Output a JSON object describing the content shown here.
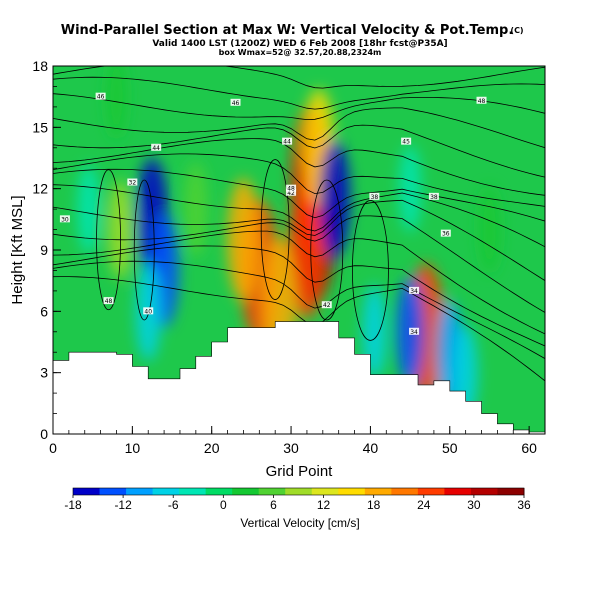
{
  "title": {
    "main": "Wind-Parallel Section at Max W: Vertical Velocity & Pot.Temp.",
    "main_suffix": "(C)",
    "line2": "Valid 1400 LST (1200Z) WED 6 Feb 2008 [18hr fcst@P35A]",
    "line3": "box Wmax=52@ 32.57,20.88,2324m"
  },
  "chart_data": {
    "type": "heatmap",
    "xlabel": "Grid Point",
    "ylabel": "Height [Kft MSL]",
    "xlim": [
      0,
      62
    ],
    "ylim": [
      0,
      18
    ],
    "xticks": [
      "0",
      "10",
      "20",
      "30",
      "40",
      "50",
      "60"
    ],
    "yticks": [
      "0",
      "3",
      "6",
      "9",
      "12",
      "15",
      "18"
    ],
    "colorbar": {
      "label": "Vertical Velocity [cm/s]",
      "ticks": [
        "-18",
        "-12",
        "-6",
        "0",
        "6",
        "12",
        "18",
        "24",
        "30",
        "36"
      ],
      "range": [
        -18,
        36
      ],
      "colors": [
        "#0000c8",
        "#0050ff",
        "#00a0ff",
        "#00d2e6",
        "#00e6b4",
        "#00dc64",
        "#14c832",
        "#50d232",
        "#a0dc28",
        "#dce61e",
        "#ffdc00",
        "#ffaa00",
        "#ff7800",
        "#ff3c00",
        "#e60000",
        "#b40000",
        "#8c0000"
      ]
    },
    "terrain": {
      "x": [
        0,
        2,
        4,
        6,
        8,
        10,
        12,
        14,
        16,
        18,
        20,
        22,
        24,
        26,
        28,
        30,
        32,
        34,
        36,
        38,
        40,
        42,
        44,
        46,
        48,
        50,
        52,
        54,
        56,
        58,
        60,
        62
      ],
      "height_kft": [
        3.6,
        4.0,
        4.0,
        4.0,
        3.9,
        3.3,
        2.7,
        2.7,
        3.2,
        3.8,
        4.5,
        5.2,
        5.2,
        5.2,
        5.5,
        5.5,
        5.5,
        5.5,
        4.7,
        3.9,
        2.9,
        2.9,
        2.9,
        2.4,
        2.6,
        2.1,
        1.6,
        1.0,
        0.5,
        0.2,
        0.1,
        0.1
      ]
    },
    "velocity_cells": [
      {
        "x": 33.0,
        "y": 10.5,
        "w_cms": 36
      },
      {
        "x": 32.5,
        "y": 12.5,
        "w_cms": 28
      },
      {
        "x": 32.0,
        "y": 9.0,
        "w_cms": 24
      },
      {
        "x": 33.5,
        "y": 14.0,
        "w_cms": 16
      },
      {
        "x": 26.0,
        "y": 8.0,
        "w_cms": 26
      },
      {
        "x": 24.0,
        "y": 9.5,
        "w_cms": 18
      },
      {
        "x": 28.5,
        "y": 6.5,
        "w_cms": 20
      },
      {
        "x": 12.5,
        "y": 10.5,
        "w_cms": -18
      },
      {
        "x": 14.0,
        "y": 8.0,
        "w_cms": -14
      },
      {
        "x": 12.0,
        "y": 6.0,
        "w_cms": -8
      },
      {
        "x": 35.5,
        "y": 11.5,
        "w_cms": -16
      },
      {
        "x": 8.5,
        "y": 10.0,
        "w_cms": 8
      },
      {
        "x": 4.5,
        "y": 11.0,
        "w_cms": -4
      },
      {
        "x": 18.0,
        "y": 11.0,
        "w_cms": 6
      },
      {
        "x": 47.0,
        "y": 5.0,
        "w_cms": 24
      },
      {
        "x": 45.0,
        "y": 5.0,
        "w_cms": -12
      },
      {
        "x": 40.5,
        "y": 5.0,
        "w_cms": -6
      },
      {
        "x": 50.0,
        "y": 4.0,
        "w_cms": -10
      },
      {
        "x": 52.0,
        "y": 3.0,
        "w_cms": -6
      },
      {
        "x": 45.0,
        "y": 12.0,
        "w_cms": -3
      },
      {
        "x": 55.0,
        "y": 10.0,
        "w_cms": 3
      },
      {
        "x": 8.0,
        "y": 16.5,
        "w_cms": 2
      }
    ],
    "theta_contours": [
      {
        "label": "30",
        "label_x": 1.5,
        "label_y": 10.5
      },
      {
        "label": "32",
        "label_x": 10.0,
        "label_y": 12.3
      },
      {
        "label": "34",
        "label_x": 45.5,
        "label_y": 7.0
      },
      {
        "label": "36",
        "label_x": 49.5,
        "label_y": 9.8
      },
      {
        "label": "38",
        "label_x": 48.0,
        "label_y": 11.6
      },
      {
        "label": "40",
        "label_x": 12.0,
        "label_y": 6.0
      },
      {
        "label": "42",
        "label_x": 30.0,
        "label_y": 11.8
      },
      {
        "label": "44",
        "label_x": 29.5,
        "label_y": 14.3
      },
      {
        "label": "45",
        "label_x": 44.5,
        "label_y": 14.3
      },
      {
        "label": "46",
        "label_x": 23.0,
        "label_y": 16.2
      },
      {
        "label": "48",
        "label_x": 54.0,
        "label_y": 16.3
      }
    ],
    "extra_contour_labels": [
      {
        "label": "44",
        "x": 13.0,
        "y": 14.0
      },
      {
        "label": "46",
        "x": 6.0,
        "y": 16.5
      },
      {
        "label": "48",
        "x": 7.0,
        "y": 6.5
      },
      {
        "label": "48",
        "x": 30.0,
        "y": 12.0
      },
      {
        "label": "42",
        "x": 34.5,
        "y": 6.3
      },
      {
        "label": "38",
        "x": 40.5,
        "y": 11.6
      },
      {
        "label": "34",
        "x": 45.5,
        "y": 5.0
      }
    ]
  }
}
